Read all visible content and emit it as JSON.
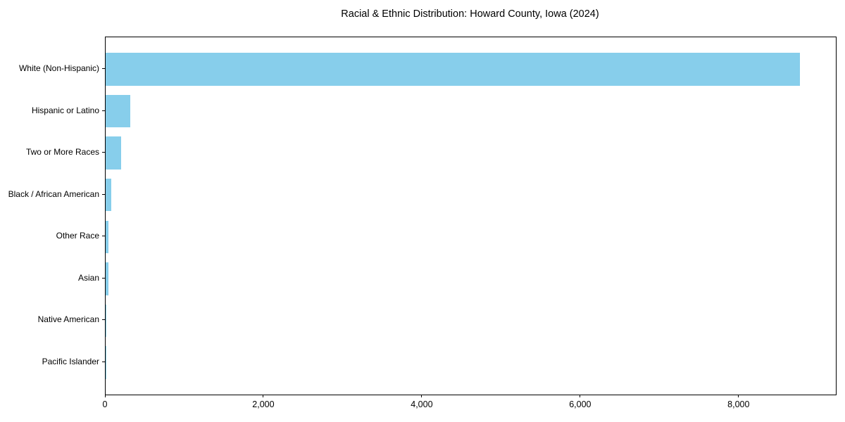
{
  "figure": {
    "title": "Racial & Ethnic Distribution: Howard County, Iowa (2024)"
  },
  "chart_data": {
    "type": "bar",
    "orientation": "horizontal",
    "title": "Racial & Ethnic Distribution: Howard County, Iowa (2024)",
    "categories": [
      "White (Non-Hispanic)",
      "Hispanic or Latino",
      "Two or More Races",
      "Black / African American",
      "Other Race",
      "Asian",
      "Native American",
      "Pacific Islander"
    ],
    "values": [
      8770,
      310,
      195,
      75,
      38,
      33,
      12,
      2
    ],
    "xlabel": "",
    "ylabel": "",
    "xlim": [
      0,
      9220
    ],
    "x_tick_values": [
      0,
      2000,
      4000,
      6000,
      8000
    ],
    "x_tick_labels": [
      "0",
      "2,000",
      "4,000",
      "6,000",
      "8,000"
    ],
    "bar_color": "#87CEEB",
    "frame_color": "#000000",
    "text_color": "#000000",
    "background_color": "#ffffff",
    "grid": false,
    "legend": null,
    "sort_order": "descending"
  }
}
